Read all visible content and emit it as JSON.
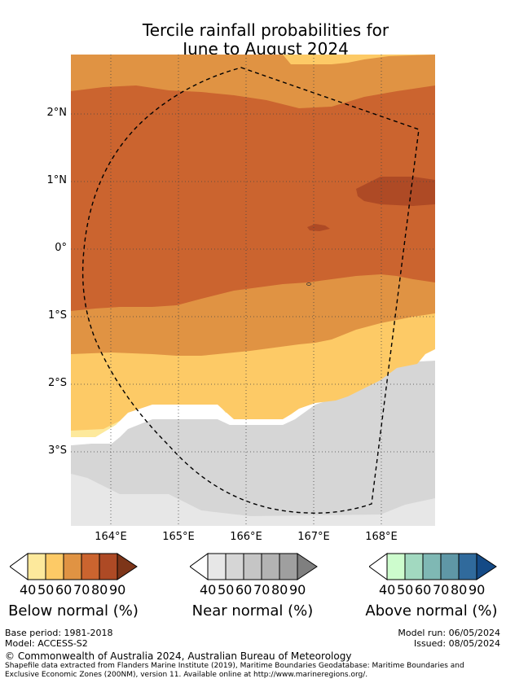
{
  "title": {
    "line1": "Tercile rainfall probabilities for",
    "line2": "June to August 2024"
  },
  "map": {
    "lat_labels": [
      "2°N",
      "1°N",
      "0°",
      "1°S",
      "2°S",
      "3°S"
    ],
    "lon_labels": [
      "164°E",
      "165°E",
      "166°E",
      "167°E",
      "168°E"
    ],
    "colors": {
      "below": [
        "#fde99c",
        "#fdca66",
        "#e09343",
        "#cb642f",
        "#ae4a25",
        "#7d3519"
      ],
      "near": [
        "#e7e7e7",
        "#d6d6d6",
        "#c5c5c5",
        "#b3b3b3",
        "#9f9f9f",
        "#7f7f7f"
      ],
      "above": [
        "#cdfccd",
        "#a2d9c0",
        "#7fb8b4",
        "#5f97a6",
        "#306a9c",
        "#144a86"
      ]
    }
  },
  "legends": [
    {
      "caption": "Below normal (%)",
      "ticks": [
        "40",
        "50",
        "60",
        "70",
        "80",
        "90"
      ]
    },
    {
      "caption": "Near normal (%)",
      "ticks": [
        "40",
        "50",
        "60",
        "70",
        "80",
        "90"
      ]
    },
    {
      "caption": "Above normal (%)",
      "ticks": [
        "40",
        "50",
        "60",
        "70",
        "80",
        "90"
      ]
    }
  ],
  "footer": {
    "base_period": "Base period: 1981-2018",
    "model": "Model: ACCESS-S2",
    "model_run": "Model run: 06/05/2024",
    "issued": "Issued: 08/05/2024",
    "copyright": "© Commonwealth of Australia 2024, Australian Bureau of Meteorology",
    "shapefile_line1": "Shapefile data extracted from Flanders Marine Institute (2019), Maritime Boundaries Geodatabase: Maritime Boundaries and",
    "shapefile_line2": "Exclusive Economic Zones (200NM), version 11. Available online at http://www.marineregions.org/."
  }
}
